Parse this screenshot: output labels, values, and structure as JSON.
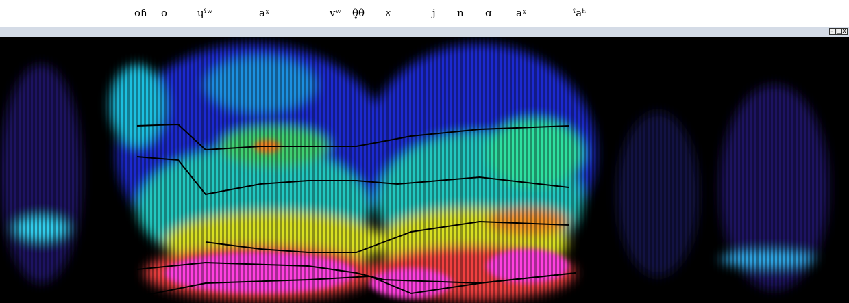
{
  "transcription": {
    "labels": [
      "oɦ",
      "o",
      "ɥˤʷ",
      "aˠ",
      "vʷ",
      "θ̥θ",
      "ɤ",
      "j",
      "n",
      "ɑ",
      "aˠ",
      "ˤaʰ"
    ]
  }
}
